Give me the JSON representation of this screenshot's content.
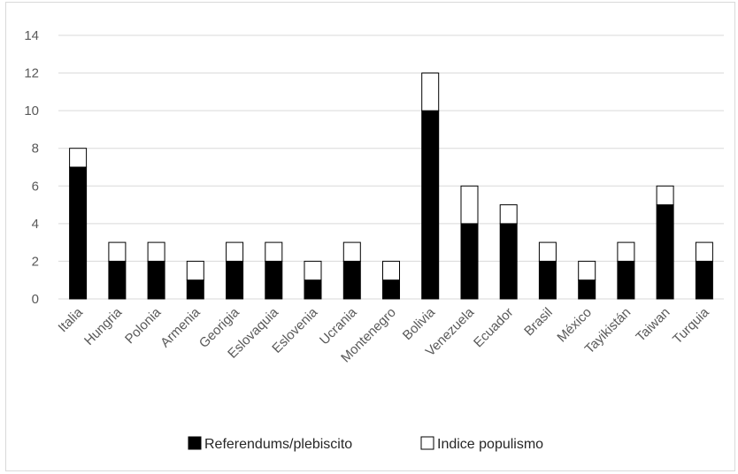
{
  "chart_data": {
    "type": "bar",
    "stacked": true,
    "title": "",
    "xlabel": "",
    "ylabel": "",
    "ylim": [
      0,
      14
    ],
    "yticks": [
      0,
      2,
      4,
      6,
      8,
      10,
      12,
      14
    ],
    "grid": true,
    "legend_position": "bottom",
    "categories": [
      "Italia",
      "Hungria",
      "Polonia",
      "Armenia",
      "Georigia",
      "Eslovaquia",
      "Eslovenia",
      "Ucrania",
      "Montenegro",
      "Bolivia",
      "Venezuela",
      "Ecuador",
      "Brasil",
      "México",
      "Tayikistán",
      "Taiwan",
      "Turquia"
    ],
    "series": [
      {
        "name": "Referendums/plebiscito",
        "color": "#000000",
        "values": [
          7,
          2,
          2,
          1,
          2,
          2,
          1,
          2,
          1,
          10,
          4,
          4,
          2,
          1,
          2,
          5,
          2
        ]
      },
      {
        "name": "Indice populismo",
        "color": "#ffffff",
        "values": [
          1,
          1,
          1,
          1,
          1,
          1,
          1,
          1,
          1,
          2,
          2,
          1,
          1,
          1,
          1,
          1,
          1
        ]
      }
    ]
  }
}
